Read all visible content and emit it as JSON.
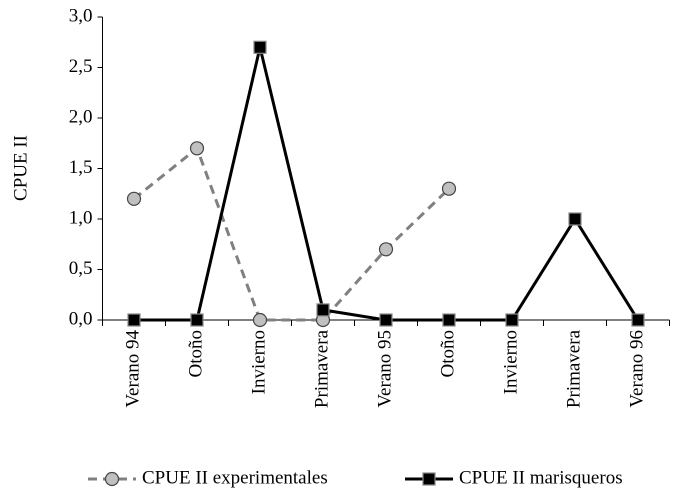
{
  "chart_data": {
    "type": "line",
    "y_label": "CPUE II",
    "categories": [
      "Verano 94",
      "Otoño",
      "Invierno",
      "Primavera",
      "Verano 95",
      "Otoño",
      "Invierno",
      "Primavera",
      "Verano 96"
    ],
    "series": [
      {
        "name": "CPUE II experimentales",
        "color": "#808080",
        "marker_color": "#c0c0c0",
        "marker": "circle",
        "dashed": true,
        "values": [
          1.2,
          1.7,
          0,
          0,
          0.7,
          1.3,
          null,
          null,
          null
        ]
      },
      {
        "name": "CPUE II marisqueros",
        "color": "#000000",
        "marker_color": "#000000",
        "marker": "square",
        "dashed": false,
        "values": [
          0,
          0,
          2.7,
          0.1,
          0,
          0,
          0,
          1.0,
          0
        ]
      }
    ],
    "ylim": [
      0,
      3
    ],
    "yticks": [
      {
        "value": 0,
        "label": "0,0"
      },
      {
        "value": 0.5,
        "label": "0,5"
      },
      {
        "value": 1,
        "label": "1,0"
      },
      {
        "value": 1.5,
        "label": "1,5"
      },
      {
        "value": 2,
        "label": "2,0"
      },
      {
        "value": 2.5,
        "label": "2,5"
      },
      {
        "value": 3,
        "label": "3,0"
      }
    ],
    "grid": false
  }
}
